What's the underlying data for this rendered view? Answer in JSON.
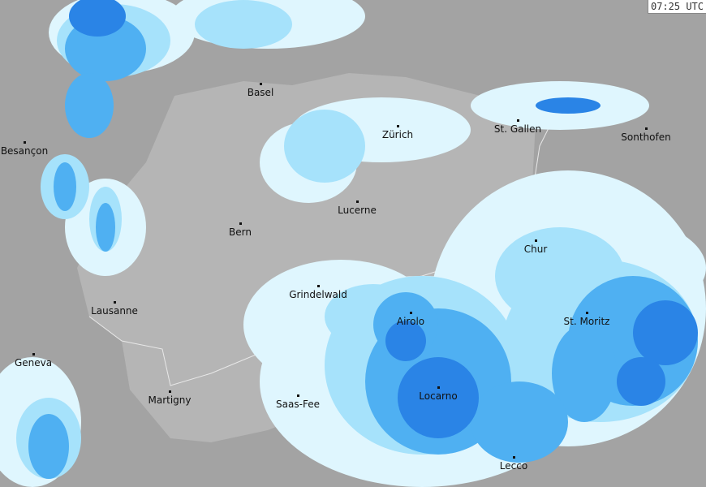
{
  "timestamp": "07:25 UTC",
  "colors": {
    "background": "#a3a3a3",
    "switzerland": "#b5b5b5",
    "border": "#e8e8e8",
    "radar_light": "#dff6fe",
    "radar_medium": "#a6e2fb",
    "radar_strong": "#4fb0f2",
    "radar_heavy": "#2a84e6"
  },
  "cities": [
    "Basel",
    "Besançon",
    "Zürich",
    "St. Gallen",
    "Sonthofen",
    "Lucerne",
    "Bern",
    "Chur",
    "Grindelwald",
    "Lausanne",
    "Airolo",
    "St. Moritz",
    "Geneva",
    "Martigny",
    "Saas-Fee",
    "Locarno",
    "Lecco"
  ]
}
